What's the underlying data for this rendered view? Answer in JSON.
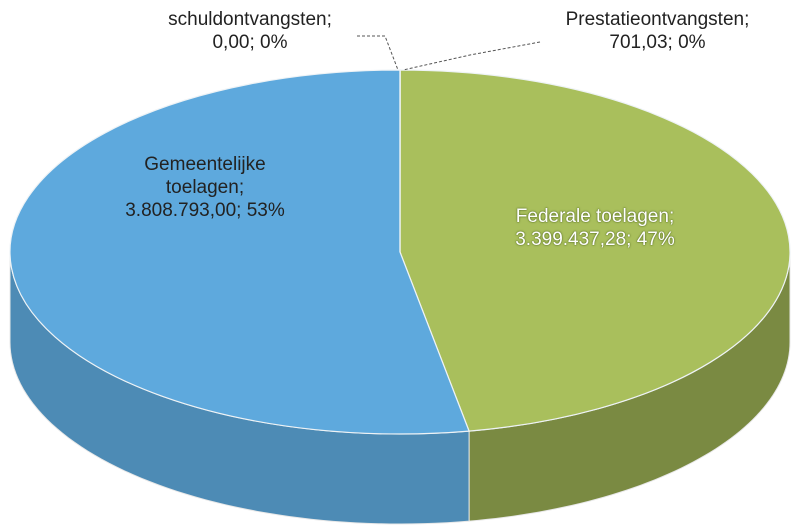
{
  "chart_data": {
    "type": "pie3d",
    "categories": [
      "Prestatieontvangsten",
      "Federale toelagen",
      "Gemeentelijke toelagen",
      "schuldontvangsten"
    ],
    "values": [
      701.03,
      3399437.28,
      3808793.0,
      0.0
    ],
    "value_labels": [
      "701,03",
      "3.399.437,28",
      "3.808.793,00",
      "0,00"
    ],
    "percentages": [
      0,
      47,
      53,
      0
    ],
    "percentage_labels": [
      "0%",
      "47%",
      "53%",
      "0%"
    ],
    "label_separator": ";",
    "colors": [
      "#9fb853",
      "#a9bf5c",
      "#5ea9dd",
      "#5ea9dd"
    ]
  }
}
